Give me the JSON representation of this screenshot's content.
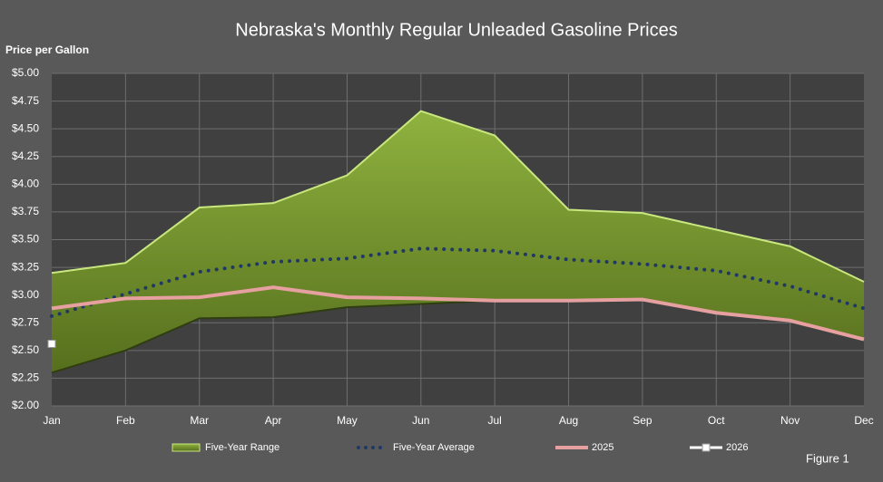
{
  "chart_data": {
    "type": "range-line",
    "title": "Nebraska's Monthly Regular Unleaded Gasoline Prices",
    "y_label": "Price per Gallon",
    "footnote": "Figure 1",
    "categories": [
      "Jan",
      "Feb",
      "Mar",
      "Apr",
      "May",
      "Jun",
      "Jul",
      "Aug",
      "Sep",
      "Oct",
      "Nov",
      "Dec"
    ],
    "ylim": [
      2,
      5
    ],
    "yticks": [
      {
        "value": 2,
        "label": "$2.00"
      },
      {
        "value": 2.25,
        "label": "$2.25"
      },
      {
        "value": 2.5,
        "label": "$2.50"
      },
      {
        "value": 2.75,
        "label": "$2.75"
      },
      {
        "value": 3,
        "label": "$3.00"
      },
      {
        "value": 3.25,
        "label": "$3.25"
      },
      {
        "value": 3.5,
        "label": "$3.50"
      },
      {
        "value": 3.75,
        "label": "$3.75"
      },
      {
        "value": 4,
        "label": "$4.00"
      },
      {
        "value": 4.25,
        "label": "$4.25"
      },
      {
        "value": 4.5,
        "label": "$4.50"
      },
      {
        "value": 4.75,
        "label": "$4.75"
      },
      {
        "value": 5,
        "label": "$5.00"
      }
    ],
    "grid": true,
    "range": {
      "name": "Five-Year Range",
      "color": "#7a9c30",
      "low": [
        2.3,
        2.5,
        2.79,
        2.8,
        2.89,
        2.92,
        2.95,
        2.95,
        2.97,
        2.84,
        2.77,
        2.6
      ],
      "high": [
        3.2,
        3.29,
        3.79,
        3.83,
        4.08,
        4.66,
        4.44,
        3.77,
        3.74,
        3.59,
        3.44,
        3.12
      ]
    },
    "series": [
      {
        "name": "Five-Year Average",
        "color": "#1f3864",
        "style": "dotted",
        "values": [
          2.81,
          3.01,
          3.21,
          3.3,
          3.33,
          3.42,
          3.4,
          3.32,
          3.28,
          3.22,
          3.08,
          2.88
        ]
      },
      {
        "name": "2025",
        "color": "#e6a0a0",
        "style": "solid",
        "values": [
          2.88,
          2.97,
          2.98,
          3.07,
          2.98,
          2.97,
          2.95,
          2.95,
          2.96,
          2.84,
          2.77,
          2.6
        ]
      },
      {
        "name": "2026",
        "color": "#ffffff",
        "style": "marker",
        "values": [
          2.56,
          null,
          null,
          null,
          null,
          null,
          null,
          null,
          null,
          null,
          null,
          null
        ]
      }
    ]
  }
}
